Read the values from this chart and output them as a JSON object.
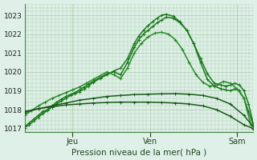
{
  "bg_color": "#dff0e8",
  "plot_bg_color": "#dff0e8",
  "grid_color": "#aaccaa",
  "xlabel": "Pression niveau de la mer( hPa )",
  "ylim": [
    1016.8,
    1023.6
  ],
  "yticks": [
    1017,
    1018,
    1019,
    1020,
    1021,
    1022,
    1023
  ],
  "xlim": [
    0.0,
    1.0
  ],
  "day_labels": [
    "Jeu",
    "Ven",
    "Sam"
  ],
  "day_positions": [
    0.21,
    0.55,
    0.93
  ],
  "series": [
    {
      "x": [
        0.0,
        0.02,
        0.04,
        0.06,
        0.08,
        0.1,
        0.12,
        0.14,
        0.16,
        0.18,
        0.2,
        0.22,
        0.24,
        0.26,
        0.28,
        0.3,
        0.33,
        0.36,
        0.39,
        0.42,
        0.45,
        0.48,
        0.5,
        0.52,
        0.54,
        0.56,
        0.58,
        0.6,
        0.62,
        0.65,
        0.68,
        0.71,
        0.74,
        0.77,
        0.8,
        0.83,
        0.86,
        0.88,
        0.9,
        0.92,
        0.94,
        0.96,
        0.98,
        1.0
      ],
      "y": [
        1017.1,
        1017.3,
        1017.5,
        1017.7,
        1017.9,
        1018.0,
        1018.2,
        1018.4,
        1018.55,
        1018.7,
        1018.8,
        1018.9,
        1019.05,
        1019.2,
        1019.35,
        1019.5,
        1019.7,
        1019.9,
        1020.0,
        1019.85,
        1020.5,
        1021.3,
        1021.7,
        1022.0,
        1022.2,
        1022.4,
        1022.6,
        1022.75,
        1022.9,
        1022.85,
        1022.6,
        1022.2,
        1021.5,
        1020.7,
        1019.9,
        1019.4,
        1019.3,
        1019.25,
        1019.3,
        1019.4,
        1019.3,
        1019.0,
        1018.3,
        1017.3
      ],
      "color": "#1a7a1a",
      "lw": 1.1
    },
    {
      "x": [
        0.0,
        0.02,
        0.04,
        0.06,
        0.08,
        0.1,
        0.12,
        0.14,
        0.16,
        0.18,
        0.2,
        0.22,
        0.24,
        0.26,
        0.28,
        0.3,
        0.33,
        0.36,
        0.39,
        0.42,
        0.45,
        0.48,
        0.5,
        0.52,
        0.54,
        0.56,
        0.58,
        0.6,
        0.62,
        0.65,
        0.68,
        0.71,
        0.74,
        0.77,
        0.8,
        0.83,
        0.86,
        0.88,
        0.9,
        0.92,
        0.94,
        0.96,
        0.98,
        1.0
      ],
      "y": [
        1017.05,
        1017.2,
        1017.4,
        1017.6,
        1017.8,
        1017.95,
        1018.15,
        1018.3,
        1018.45,
        1018.6,
        1018.75,
        1018.85,
        1018.95,
        1019.1,
        1019.25,
        1019.45,
        1019.65,
        1019.85,
        1020.05,
        1020.2,
        1020.7,
        1021.5,
        1021.9,
        1022.2,
        1022.45,
        1022.65,
        1022.85,
        1023.0,
        1023.05,
        1022.95,
        1022.65,
        1022.2,
        1021.5,
        1020.5,
        1019.6,
        1019.25,
        1019.1,
        1019.05,
        1019.0,
        1019.1,
        1019.0,
        1018.6,
        1017.9,
        1017.2
      ],
      "color": "#1a7a1a",
      "lw": 1.1
    },
    {
      "x": [
        0.0,
        0.03,
        0.06,
        0.09,
        0.12,
        0.15,
        0.18,
        0.21,
        0.24,
        0.27,
        0.3,
        0.33,
        0.36,
        0.39,
        0.42,
        0.45,
        0.48,
        0.51,
        0.54,
        0.57,
        0.6,
        0.63,
        0.66,
        0.69,
        0.72,
        0.75,
        0.78,
        0.81,
        0.84,
        0.87,
        0.9,
        0.93,
        0.96,
        0.99
      ],
      "y": [
        1017.7,
        1017.95,
        1018.2,
        1018.4,
        1018.6,
        1018.75,
        1018.9,
        1019.05,
        1019.2,
        1019.4,
        1019.6,
        1019.8,
        1020.0,
        1019.85,
        1019.65,
        1020.2,
        1021.0,
        1021.5,
        1021.85,
        1022.05,
        1022.1,
        1022.0,
        1021.7,
        1021.2,
        1020.5,
        1019.85,
        1019.45,
        1019.25,
        1019.3,
        1019.5,
        1019.4,
        1019.1,
        1018.6,
        1017.2
      ],
      "color": "#2a8a2a",
      "lw": 1.1
    },
    {
      "x": [
        0.0,
        0.06,
        0.12,
        0.18,
        0.24,
        0.3,
        0.36,
        0.42,
        0.48,
        0.54,
        0.6,
        0.66,
        0.72,
        0.78,
        0.84,
        0.9,
        0.96,
        1.0
      ],
      "y": [
        1017.85,
        1018.05,
        1018.2,
        1018.35,
        1018.5,
        1018.6,
        1018.7,
        1018.75,
        1018.8,
        1018.82,
        1018.84,
        1018.85,
        1018.82,
        1018.75,
        1018.6,
        1018.3,
        1017.7,
        1017.1
      ],
      "color": "#1a5a1a",
      "lw": 1.1
    },
    {
      "x": [
        0.0,
        0.06,
        0.12,
        0.18,
        0.24,
        0.3,
        0.36,
        0.42,
        0.48,
        0.54,
        0.6,
        0.66,
        0.72,
        0.78,
        0.84,
        0.9,
        0.96,
        1.0
      ],
      "y": [
        1017.9,
        1018.05,
        1018.15,
        1018.25,
        1018.3,
        1018.35,
        1018.38,
        1018.4,
        1018.4,
        1018.4,
        1018.38,
        1018.35,
        1018.3,
        1018.2,
        1018.0,
        1017.65,
        1017.2,
        1017.0
      ],
      "color": "#1a5a1a",
      "lw": 1.1
    }
  ]
}
